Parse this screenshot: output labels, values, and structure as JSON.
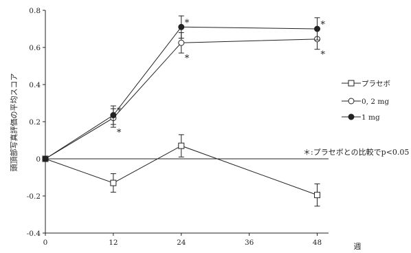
{
  "chart_data": {
    "type": "line",
    "ylabel": "頭頂部写真評価の平均スコア",
    "xlabel": "週",
    "x": [
      0,
      12,
      24,
      48
    ],
    "xticks": [
      "0",
      "12",
      "24",
      "36",
      "48"
    ],
    "yticks": [
      "0.8",
      "0.6",
      "0.4",
      "0.2",
      "0",
      "-0.2",
      "-0.4"
    ],
    "xlim": [
      0,
      50
    ],
    "ylim": [
      -0.4,
      0.8
    ],
    "series": [
      {
        "name": "プラセボ",
        "marker": "open-square",
        "color": "#222222",
        "values": [
          0,
          -0.13,
          0.07,
          -0.195
        ],
        "errors": [
          0,
          0.05,
          0.06,
          0.06
        ]
      },
      {
        "name": "0, 2 mg",
        "marker": "open-circle",
        "color": "#222222",
        "values": [
          0,
          0.22,
          0.625,
          0.645
        ],
        "errors": [
          0,
          0.05,
          0.055,
          0.055
        ]
      },
      {
        "name": "1 mg",
        "marker": "filled-circle",
        "color": "#222222",
        "values": [
          0,
          0.235,
          0.71,
          0.7
        ],
        "errors": [
          0,
          0.05,
          0.06,
          0.06
        ]
      }
    ],
    "significance_marks": [
      {
        "series": "1 mg",
        "x": 12,
        "text": "*"
      },
      {
        "series": "0, 2 mg",
        "x": 12,
        "text": "*"
      },
      {
        "series": "1 mg",
        "x": 24,
        "text": "*"
      },
      {
        "series": "0, 2 mg",
        "x": 24,
        "text": "*"
      },
      {
        "series": "1 mg",
        "x": 48,
        "text": "*"
      },
      {
        "series": "0, 2 mg",
        "x": 48,
        "text": "*"
      }
    ],
    "legend_position": "right",
    "note": "＊:プラセボとの比較でp<0.05",
    "grid": false
  }
}
